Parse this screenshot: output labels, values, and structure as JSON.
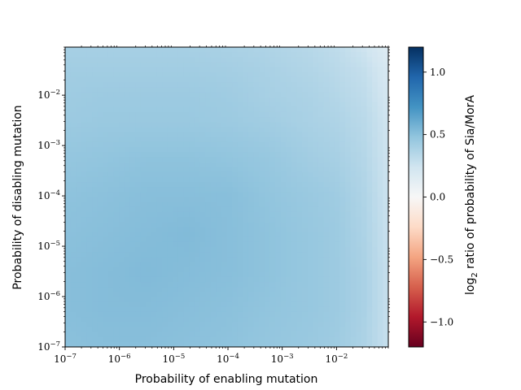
{
  "chart_data": {
    "type": "heatmap",
    "title": "",
    "xlabel": "Probability of enabling mutation",
    "ylabel": "Probability of disabling mutation",
    "x_scale": "log",
    "y_scale": "log",
    "xlim": [
      1e-07,
      0.09
    ],
    "ylim": [
      1e-07,
      0.09
    ],
    "x_ticks": [
      {
        "base": "10",
        "exp": "−7",
        "value": 1e-07
      },
      {
        "base": "10",
        "exp": "−6",
        "value": 1e-06
      },
      {
        "base": "10",
        "exp": "−5",
        "value": 1e-05
      },
      {
        "base": "10",
        "exp": "−4",
        "value": 0.0001
      },
      {
        "base": "10",
        "exp": "−3",
        "value": 0.001
      },
      {
        "base": "10",
        "exp": "−2",
        "value": 0.01
      }
    ],
    "y_ticks": [
      {
        "base": "10",
        "exp": "−7",
        "value": 1e-07
      },
      {
        "base": "10",
        "exp": "−6",
        "value": 1e-06
      },
      {
        "base": "10",
        "exp": "−5",
        "value": 1e-05
      },
      {
        "base": "10",
        "exp": "−4",
        "value": 0.0001
      },
      {
        "base": "10",
        "exp": "−3",
        "value": 0.001
      },
      {
        "base": "10",
        "exp": "−2",
        "value": 0.01
      }
    ],
    "colorbar": {
      "label_prefix": "log",
      "label_sub": "2",
      "label_suffix": " ratio of probability of Sia/MorA",
      "colormap": "RdBu",
      "colors": [
        "#67001f",
        "#b2182b",
        "#d6604d",
        "#f4a582",
        "#fddbc7",
        "#f7f7f7",
        "#d1e5f0",
        "#92c5de",
        "#4393c3",
        "#2166ac",
        "#053061"
      ],
      "range": [
        -1.2,
        1.2
      ],
      "ticks": [
        {
          "value": 1.0,
          "label": "1.0"
        },
        {
          "value": 0.5,
          "label": "0.5"
        },
        {
          "value": 0.0,
          "label": "0.0"
        },
        {
          "value": -0.5,
          "label": "−0.5"
        },
        {
          "value": -1.0,
          "label": "−1.0"
        }
      ]
    },
    "x_log10": [
      -7.0,
      -6.25,
      -5.5,
      -4.75,
      -4.0,
      -3.25,
      -2.5,
      -2.0,
      -1.5,
      -1.05
    ],
    "y_log10": [
      -7.0,
      -6.25,
      -5.5,
      -4.75,
      -4.0,
      -3.25,
      -2.5,
      -2.0,
      -1.5,
      -1.05
    ],
    "z": [
      [
        0.5,
        0.51,
        0.51,
        0.5,
        0.49,
        0.47,
        0.45,
        0.43,
        0.38,
        0.28
      ],
      [
        0.51,
        0.52,
        0.52,
        0.51,
        0.5,
        0.48,
        0.46,
        0.44,
        0.39,
        0.28
      ],
      [
        0.51,
        0.52,
        0.53,
        0.52,
        0.51,
        0.49,
        0.46,
        0.44,
        0.39,
        0.28
      ],
      [
        0.5,
        0.51,
        0.52,
        0.53,
        0.51,
        0.49,
        0.46,
        0.44,
        0.38,
        0.27
      ],
      [
        0.49,
        0.5,
        0.51,
        0.51,
        0.51,
        0.48,
        0.45,
        0.43,
        0.37,
        0.26
      ],
      [
        0.47,
        0.48,
        0.49,
        0.49,
        0.48,
        0.46,
        0.42,
        0.4,
        0.35,
        0.25
      ],
      [
        0.44,
        0.45,
        0.45,
        0.45,
        0.44,
        0.42,
        0.39,
        0.37,
        0.33,
        0.24
      ],
      [
        0.43,
        0.44,
        0.44,
        0.44,
        0.43,
        0.4,
        0.38,
        0.35,
        0.31,
        0.22
      ],
      [
        0.42,
        0.42,
        0.42,
        0.42,
        0.41,
        0.39,
        0.36,
        0.33,
        0.29,
        0.2
      ],
      [
        0.4,
        0.4,
        0.4,
        0.4,
        0.39,
        0.37,
        0.34,
        0.31,
        0.25,
        0.16
      ]
    ]
  }
}
